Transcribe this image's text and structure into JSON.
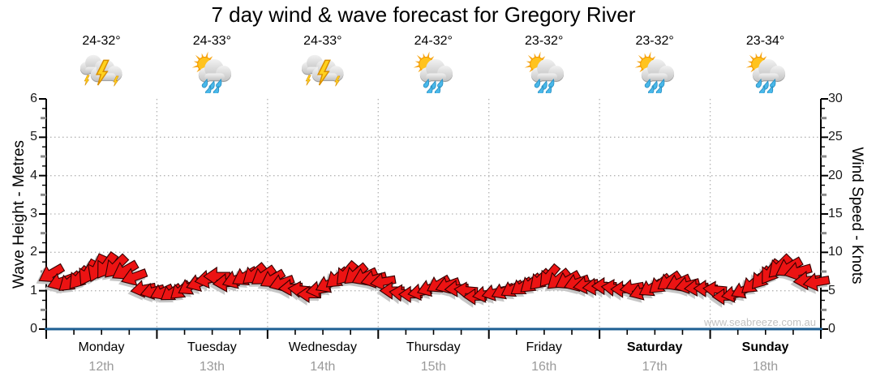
{
  "title": "7 day wind & wave forecast for Gregory River",
  "watermark": "www.seabreeze.com.au",
  "colors": {
    "arrow": "#ec1313",
    "arrow_outline": "#330000",
    "arrow_shadow": "#c6c6c6",
    "axis_line": "#000000",
    "bottom_axis_line": "#1e5f93",
    "gridline": "#b4b4b4",
    "minor_tick_gray": "#8a8a8a",
    "date_text": "#9a9a9a",
    "watermark_text": "#c2c2c2"
  },
  "left_axis": {
    "title": "Wave Height - Metres",
    "ticks": [
      "6",
      "5",
      "4",
      "3",
      "2",
      "1",
      "0"
    ],
    "min": 0,
    "max": 6
  },
  "right_axis": {
    "title": "Wind Speed - Knots",
    "ticks": [
      "30",
      "25",
      "20",
      "15",
      "10",
      "5",
      "0"
    ],
    "min": 0,
    "max": 30
  },
  "days": [
    {
      "name": "Monday",
      "date": "12th",
      "temp": "24-32°",
      "icon": "storm-icon",
      "bold": false
    },
    {
      "name": "Tuesday",
      "date": "13th",
      "temp": "24-33°",
      "icon": "sun-rain-icon",
      "bold": false
    },
    {
      "name": "Wednesday",
      "date": "14th",
      "temp": "24-33°",
      "icon": "storm-icon",
      "bold": false
    },
    {
      "name": "Thursday",
      "date": "15th",
      "temp": "24-32°",
      "icon": "sun-rain-icon",
      "bold": false
    },
    {
      "name": "Friday",
      "date": "16th",
      "temp": "23-32°",
      "icon": "sun-rain-icon",
      "bold": false
    },
    {
      "name": "Saturday",
      "date": "17th",
      "temp": "23-32°",
      "icon": "sun-rain-icon",
      "bold": true
    },
    {
      "name": "Sunday",
      "date": "18th",
      "temp": "23-34°",
      "icon": "sun-rain-icon",
      "bold": true
    }
  ],
  "chart_data": {
    "type": "wind-arrows",
    "title": "7 day wind & wave forecast for Gregory River",
    "x_axis": "7 days (Mon 12th - Sun 18th), one arrow per 2 hours",
    "ylabel_left": "Wave Height - Metres",
    "ylabel_right": "Wind Speed - Knots",
    "ylim_left": [
      0,
      6
    ],
    "ylim_right": [
      0,
      30
    ],
    "grid": "dotted horizontal at 1-5 m, dotted vertical at day boundaries",
    "wind_knots": [
      6.8,
      6.5,
      6.4,
      6.8,
      7.4,
      7.9,
      8.1,
      7.9,
      7.3,
      6.4,
      5.6,
      5.2,
      5.0,
      4.8,
      5.0,
      5.4,
      5.8,
      6.2,
      6.5,
      6.4,
      6.7,
      7.0,
      7.2,
      6.9,
      6.4,
      5.8,
      5.1,
      4.8,
      4.9,
      5.4,
      6.0,
      6.7,
      7.2,
      7.0,
      6.6,
      6.2,
      5.8,
      5.4,
      5.0,
      4.7,
      4.9,
      5.3,
      5.7,
      5.5,
      5.0,
      4.7,
      4.6,
      4.8,
      4.9,
      5.0,
      5.2,
      5.4,
      5.7,
      6.1,
      6.5,
      6.8,
      6.6,
      6.2,
      5.8,
      5.5,
      5.5,
      5.2,
      4.9,
      5.0,
      5.2,
      5.6,
      6.0,
      6.3,
      6.0,
      5.6,
      5.2,
      5.0,
      4.8,
      4.6,
      4.8,
      5.2,
      5.9,
      6.6,
      7.3,
      7.9,
      7.7,
      7.1,
      6.7,
      6.4
    ],
    "wind_dir_deg": [
      150,
      160,
      140,
      130,
      120,
      115,
      125,
      135,
      150,
      160,
      170,
      165,
      155,
      145,
      140,
      150,
      160,
      170,
      180,
      175,
      160,
      150,
      140,
      145,
      150,
      160,
      175,
      185,
      180,
      170,
      155,
      140,
      130,
      140,
      155,
      165,
      170,
      180,
      185,
      180,
      170,
      160,
      150,
      160,
      175,
      185,
      180,
      170,
      165,
      155,
      150,
      145,
      140,
      135,
      130,
      140,
      150,
      160,
      170,
      175,
      180,
      185,
      180,
      170,
      160,
      150,
      140,
      145,
      155,
      165,
      175,
      180,
      185,
      180,
      170,
      155,
      140,
      130,
      125,
      135,
      150,
      165,
      175,
      170
    ]
  }
}
